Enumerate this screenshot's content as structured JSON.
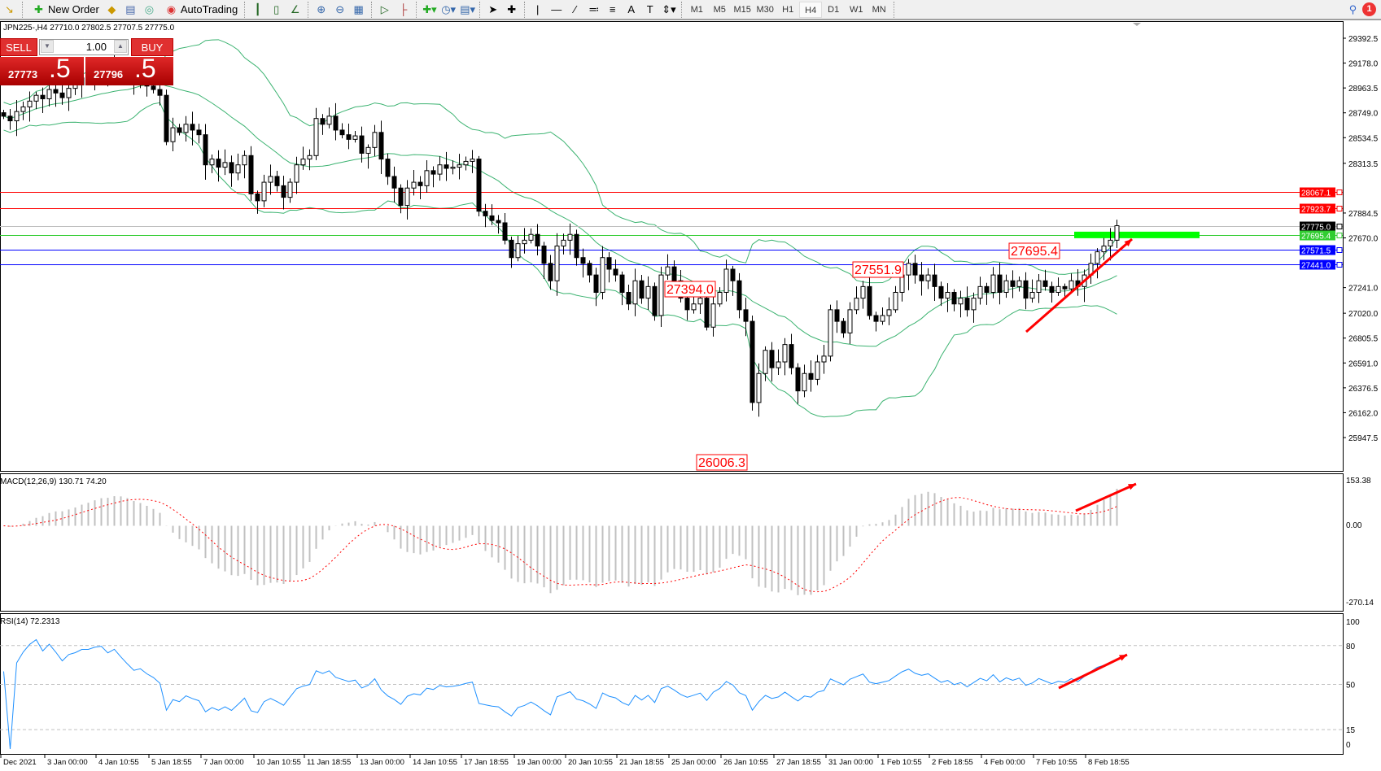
{
  "toolbar": {
    "new_order": "New Order",
    "autotrading": "AutoTrading",
    "timeframes": [
      "M1",
      "M5",
      "M15",
      "M30",
      "H1",
      "H4",
      "D1",
      "W1",
      "MN"
    ],
    "active_timeframe": "H4",
    "notification_count": "1",
    "icons": [
      "new-order-icon",
      "expert-icon",
      "market-watch-icon",
      "signals-icon",
      "autotrading-icon",
      "bar-chart-icon",
      "candlestick-icon",
      "line-chart-icon",
      "zoom-in-icon",
      "zoom-out-icon",
      "tile-icon",
      "autoscroll-icon",
      "chart-shift-icon",
      "indicators-icon",
      "periods-icon",
      "templates-icon",
      "cursor-icon",
      "crosshair-icon",
      "vertical-line-icon",
      "horizontal-line-icon",
      "trendline-icon",
      "channel-icon",
      "fibonacci-icon",
      "text-icon",
      "text-label-icon",
      "arrows-icon",
      "search-icon",
      "notification-icon"
    ]
  },
  "symbol_info": "JPN225-,H4  27710.0 27802.5 27707.5 27775.0",
  "trade_panel": {
    "sell": "SELL",
    "buy": "BUY",
    "lot": "1.00",
    "sell_price_main": "27773",
    "sell_price_frac": ".5",
    "buy_price_main": "27796",
    "buy_price_frac": ".5"
  },
  "colors": {
    "bullish": "#ffffff",
    "bearish": "#000000",
    "bollinger": "#3cb371",
    "macd_hist": "#c0c0c0",
    "macd_signal": "#ff0000",
    "rsi": "#1e90ff",
    "level_red": "#ff0000",
    "level_green": "#32cd32",
    "level_blue": "#0000ff",
    "zone": "#00ff00"
  },
  "chart_data": {
    "type": "candlestick",
    "symbol": "JPN225-",
    "timeframe": "H4",
    "price_axis_ticks": [
      "29392.5",
      "29178.0",
      "28963.5",
      "28749.0",
      "28534.5",
      "28313.5",
      "27884.5",
      "27670.0",
      "27241.0",
      "27020.0",
      "26805.5",
      "26591.0",
      "26376.5",
      "26162.0",
      "25947.5"
    ],
    "price_range": [
      25947.5,
      29392.5
    ],
    "time_labels": [
      "Dec 2021",
      "3 Jan 00:00",
      "4 Jan 10:55",
      "5 Jan 18:55",
      "7 Jan 00:00",
      "10 Jan 10:55",
      "11 Jan 18:55",
      "13 Jan 00:00",
      "14 Jan 10:55",
      "17 Jan 18:55",
      "19 Jan 00:00",
      "20 Jan 10:55",
      "21 Jan 18:55",
      "25 Jan 00:00",
      "26 Jan 10:55",
      "27 Jan 18:55",
      "31 Jan 00:00",
      "1 Feb 10:55",
      "2 Feb 18:55",
      "4 Feb 00:00",
      "7 Feb 10:55",
      "8 Feb 18:55"
    ],
    "closes": [
      28720,
      28680,
      28760,
      28800,
      28850,
      28900,
      28870,
      28950,
      28920,
      28880,
      28960,
      28990,
      29050,
      29050,
      29100,
      29120,
      29080,
      29150,
      29100,
      29050,
      29000,
      29020,
      28980,
      28950,
      28900,
      28500,
      28620,
      28580,
      28650,
      28600,
      28560,
      28300,
      28350,
      28280,
      28320,
      28230,
      28300,
      28380,
      28050,
      27990,
      28150,
      28200,
      28120,
      28020,
      28150,
      28300,
      28350,
      28380,
      28700,
      28650,
      28720,
      28600,
      28560,
      28520,
      28550,
      28400,
      28450,
      28580,
      28350,
      28200,
      28100,
      27950,
      28100,
      28150,
      28120,
      28250,
      28220,
      28300,
      28270,
      28280,
      28300,
      28330,
      28350,
      27900,
      27860,
      27820,
      27800,
      27650,
      27500,
      27620,
      27650,
      27700,
      27600,
      27450,
      27300,
      27600,
      27650,
      27700,
      27500,
      27450,
      27350,
      27200,
      27500,
      27400,
      27350,
      27200,
      27100,
      27300,
      27150,
      27250,
      27000,
      27350,
      27420,
      27300,
      27150,
      27050,
      27100,
      27150,
      26900,
      27100,
      27200,
      27400,
      27300,
      27050,
      26950,
      26250,
      26500,
      26700,
      26550,
      26600,
      26750,
      26550,
      26350,
      26500,
      26450,
      26600,
      26650,
      27050,
      26950,
      26850,
      27050,
      27150,
      27250,
      27000,
      26950,
      27000,
      27050,
      27200,
      27350,
      27450,
      27350,
      27300,
      27350,
      27250,
      27150,
      27200,
      27100,
      27150,
      27050,
      27150,
      27250,
      27200,
      27350,
      27200,
      27300,
      27250,
      27300,
      27150,
      27200,
      27300,
      27250,
      27200,
      27250,
      27230,
      27300,
      27250,
      27350,
      27450,
      27550,
      27600,
      27650,
      27775
    ],
    "levels": [
      {
        "price": 28067.1,
        "label": "28067.1",
        "color": "#ff0000"
      },
      {
        "price": 27923.7,
        "label": "27923.7",
        "color": "#ff0000"
      },
      {
        "price": 27775.0,
        "label": "27775.0",
        "color": "#000000",
        "line": "#c0c0c0"
      },
      {
        "price": 27695.4,
        "label": "27695.4",
        "color": "#32cd32"
      },
      {
        "price": 27571.5,
        "label": "27571.5",
        "color": "#0000ff"
      },
      {
        "price": 27441.0,
        "label": "27441.0",
        "color": "#0000ff"
      }
    ],
    "annotations": [
      {
        "text": "27695.4",
        "price": 27695.4
      },
      {
        "text": "27551.9",
        "price": 27551.9
      },
      {
        "text": "27394.0",
        "price": 27394.0
      },
      {
        "text": "26006.3",
        "price": 26006.3
      }
    ],
    "indicators": {
      "bollinger": "Bollinger Bands (20, 2)",
      "macd": {
        "label": "MACD(12,26,9) 130.71 74.20",
        "range": [
          -270.14,
          153.38
        ],
        "ticks": [
          "153.38",
          "0.00",
          "-270.14"
        ]
      },
      "rsi": {
        "label": "RSI(14) 72.2313",
        "range": [
          0,
          100
        ],
        "levels": [
          80,
          50,
          15
        ],
        "ticks": [
          "100",
          "80",
          "50",
          "15",
          "0"
        ]
      }
    }
  }
}
